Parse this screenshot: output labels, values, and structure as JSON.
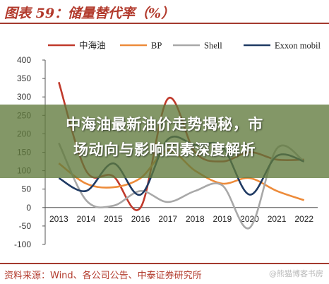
{
  "figure": {
    "title": "图表 59：储量替代率（%）",
    "source": "资料来源：Wind、各公司公告、中泰证券研究所",
    "watermark": "@熊猫博客书房"
  },
  "overlay": {
    "line1": "中海油最新油价走势揭秘，市",
    "line2": "场动向与影响因素深度解析"
  },
  "chart_data": {
    "type": "line",
    "categories": [
      "2013",
      "2014",
      "2015",
      "2016",
      "2017",
      "2018",
      "2019",
      "2020",
      "2021",
      "2022"
    ],
    "ylim": [
      -100,
      400
    ],
    "yticks": [
      -100,
      -50,
      0,
      50,
      100,
      150,
      200,
      250,
      300,
      350,
      400
    ],
    "legend_position": "top",
    "grid": false,
    "series": [
      {
        "name": "中海油",
        "color": "#c0392b",
        "values": [
          340,
          100,
          85,
          0,
          295,
          150,
          125,
          150,
          130,
          130
        ]
      },
      {
        "name": "BP",
        "color": "#ed8b3a",
        "values": [
          120,
          65,
          55,
          80,
          155,
          100,
          65,
          80,
          45,
          20
        ]
      },
      {
        "name": "Shell",
        "color": "#a8a8a8",
        "values": [
          175,
          20,
          5,
          45,
          15,
          45,
          60,
          -55,
          160,
          125
        ]
      },
      {
        "name": "Exxon mobil",
        "color": "#1f3a63",
        "values": [
          80,
          45,
          120,
          35,
          185,
          170,
          165,
          35,
          140,
          125
        ]
      }
    ]
  }
}
